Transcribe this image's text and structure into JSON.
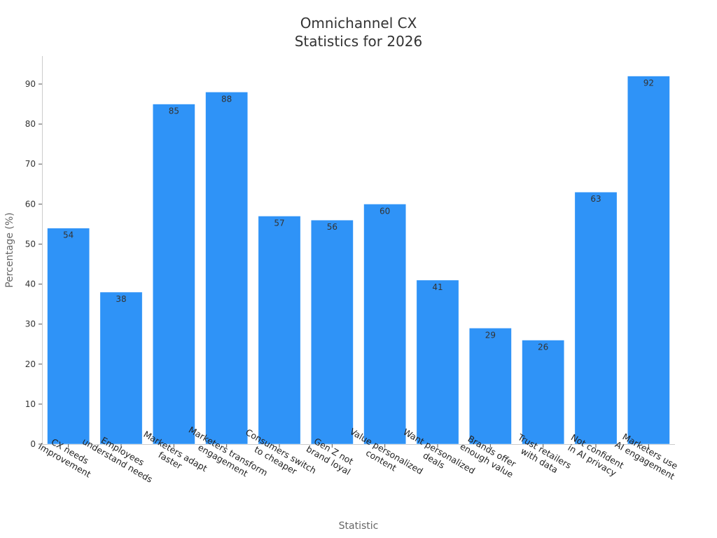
{
  "chart_data": {
    "type": "bar",
    "title": [
      "Omnichannel CX",
      "Statistics for 2026"
    ],
    "xlabel": "Statistic",
    "ylabel": "Percentage (%)",
    "ylim": [
      0,
      97
    ],
    "yticks": [
      0,
      10,
      20,
      30,
      40,
      50,
      60,
      70,
      80,
      90
    ],
    "grid": false,
    "bar_color": "#2f93f7",
    "categories": [
      [
        "CX needs",
        "improvement"
      ],
      [
        "Employees",
        "understand needs"
      ],
      [
        "Marketers adapt",
        "faster"
      ],
      [
        "Marketers transform",
        "engagement"
      ],
      [
        "Consumers switch",
        "to cheaper"
      ],
      [
        "Gen Z not",
        "brand loyal"
      ],
      [
        "Value personalized",
        "content"
      ],
      [
        "Want personalized",
        "deals"
      ],
      [
        "Brands offer",
        "enough value"
      ],
      [
        "Trust retailers",
        "with data"
      ],
      [
        "Not confident",
        "in AI privacy"
      ],
      [
        "Marketers use",
        "AI engagement"
      ]
    ],
    "values": [
      54,
      38,
      85,
      88,
      57,
      56,
      60,
      41,
      29,
      26,
      63,
      92
    ]
  }
}
